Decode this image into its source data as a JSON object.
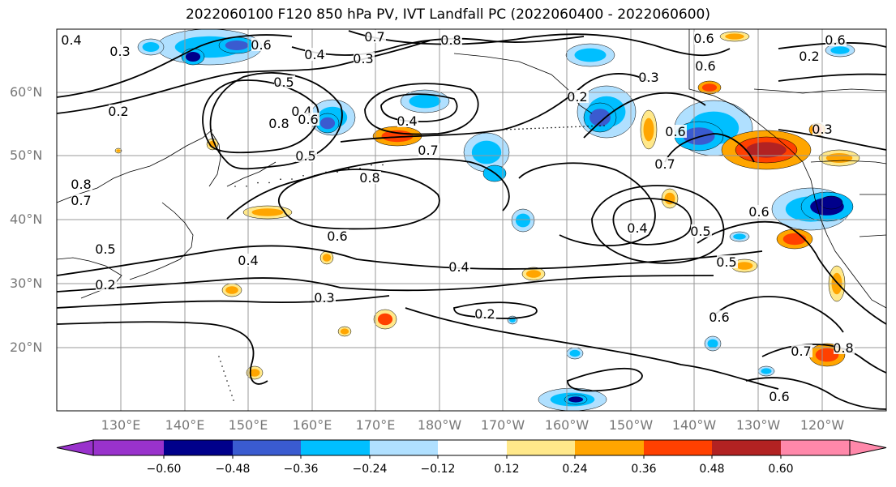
{
  "title": "2022060100 F120 850 hPa PV, IVT Landfall PC (2022060400 - 2022060600)",
  "map": {
    "lat_labels": [
      "60°N",
      "50°N",
      "40°N",
      "30°N",
      "20°N"
    ],
    "lon_labels": [
      "130°E",
      "140°E",
      "150°E",
      "160°E",
      "170°E",
      "180°W",
      "170°W",
      "160°W",
      "150°W",
      "140°W",
      "130°W",
      "120°W"
    ],
    "contour_labels": [
      "0.4",
      "0.3",
      "0.2",
      "0.6",
      "0.4",
      "0.3",
      "0.7",
      "0.8",
      "0.6",
      "0.6",
      "0.6",
      "0.2",
      "0.3",
      "0.2",
      "0.5",
      "0.4",
      "0.6",
      "0.8",
      "0.5",
      "0.4",
      "0.7",
      "0.7",
      "0.6",
      "0.3",
      "0.8",
      "0.6",
      "0.4",
      "0.5",
      "0.6",
      "0.4",
      "0.4",
      "0.5",
      "0.3",
      "0.2",
      "0.6",
      "0.8",
      "0.7",
      "0.5",
      "0.2",
      "0.6",
      "0.7",
      "0.8"
    ],
    "colors": {
      "contour": "#000000",
      "grid": "#999999",
      "coast": "#000000"
    }
  },
  "colorbar": {
    "ticks": [
      "−0.60",
      "−0.48",
      "−0.36",
      "−0.24",
      "−0.12",
      "0.12",
      "0.24",
      "0.36",
      "0.48",
      "0.60"
    ],
    "colors": [
      "#9932cc",
      "#00008b",
      "#3a5bd0",
      "#00bfff",
      "#b0e0ff",
      "#ffffff",
      "#ffe88a",
      "#ffa500",
      "#ff4000",
      "#b22222",
      "#ff88aa"
    ]
  }
}
